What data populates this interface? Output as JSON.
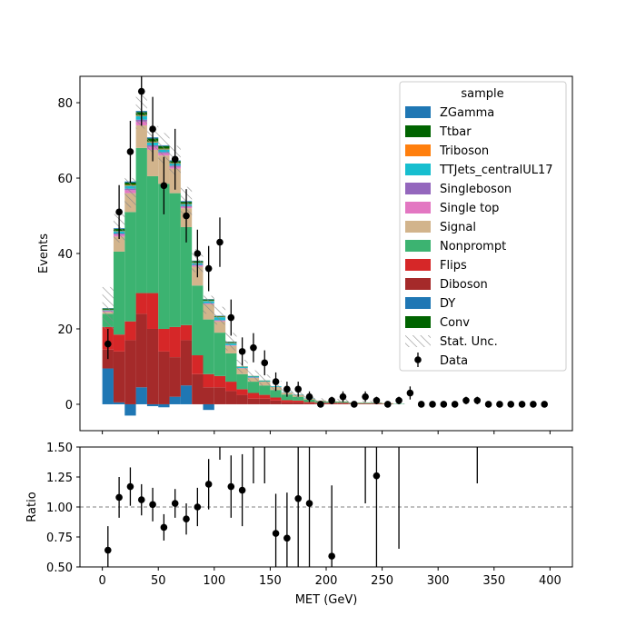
{
  "chart_data": {
    "type": "bar",
    "stacked": true,
    "xlabel": "MET (GeV)",
    "ylabel": "Events",
    "ratio_ylabel": "Ratio",
    "xlim": [
      -20,
      420
    ],
    "ylim": [
      -7,
      87
    ],
    "ratio_ylim": [
      0.5,
      1.5
    ],
    "x_ticks": [
      0,
      50,
      100,
      150,
      200,
      250,
      300,
      350,
      400
    ],
    "y_ticks": [
      0,
      20,
      40,
      60,
      80
    ],
    "ratio_ticks": [
      "0.50",
      "0.75",
      "1.00",
      "1.25",
      "1.50"
    ],
    "ratio_tick_values": [
      0.5,
      0.75,
      1.0,
      1.25,
      1.5
    ],
    "ratio_reference": 1.0,
    "bin_edges": [
      0,
      10,
      20,
      30,
      40,
      50,
      60,
      70,
      80,
      90,
      100,
      110,
      120,
      130,
      140,
      150,
      160,
      170,
      180,
      190,
      200,
      210,
      220,
      230,
      240,
      250,
      260,
      270,
      280,
      290,
      300,
      310,
      320,
      330,
      340,
      350,
      360,
      370,
      380,
      390,
      400
    ],
    "legend": {
      "title": "sample",
      "position": "upper right",
      "entries": [
        "ZGamma",
        "Ttbar",
        "Triboson",
        "TTJets_centralUL17",
        "Singleboson",
        "Single top",
        "Signal",
        "Nonprompt",
        "Flips",
        "Diboson",
        "DY",
        "Conv",
        "Stat. Unc.",
        "Data"
      ]
    },
    "series": [
      {
        "name": "DY",
        "color": "#1f77b4",
        "values": [
          9.5,
          0.5,
          -3,
          4.5,
          -0.5,
          -0.8,
          2,
          5,
          0,
          -1.5,
          0,
          0,
          0,
          0,
          0,
          0,
          0,
          0,
          0,
          0,
          0,
          0,
          0,
          0,
          0,
          0,
          0,
          0,
          0,
          0,
          0,
          0,
          0,
          0,
          0,
          0,
          0,
          0,
          0,
          0
        ]
      },
      {
        "name": "Diboson",
        "color": "#a52a2a",
        "values": [
          5,
          13.5,
          17,
          19.5,
          20,
          14,
          10.5,
          12,
          8,
          4.5,
          4.5,
          3.5,
          2.5,
          1.5,
          1.5,
          1,
          0.5,
          0.5,
          0.3,
          0.2,
          0.2,
          0.2,
          0.1,
          0.1,
          0.1,
          0,
          0,
          0,
          0,
          0,
          0,
          0,
          0,
          0,
          0,
          0,
          0,
          0,
          0,
          0
        ]
      },
      {
        "name": "Flips",
        "color": "#d62728",
        "values": [
          6,
          4.5,
          5,
          5.5,
          9.5,
          6,
          8,
          4,
          5,
          3.5,
          3,
          2.5,
          1.5,
          1.5,
          1,
          0.8,
          0.6,
          0.5,
          0.3,
          0.2,
          0.2,
          0.2,
          0.1,
          0.1,
          0.1,
          0.1,
          0,
          0,
          0,
          0,
          0,
          0,
          0,
          0,
          0,
          0,
          0,
          0,
          0,
          0
        ]
      },
      {
        "name": "Nonprompt",
        "color": "#3cb371",
        "values": [
          3.5,
          22,
          29,
          38.5,
          31,
          38.5,
          35.5,
          26,
          18.5,
          14.5,
          11.5,
          7.5,
          4,
          3,
          2.5,
          2,
          1.5,
          1,
          0.6,
          0.4,
          0.3,
          0.3,
          0.2,
          0.2,
          0.2,
          0.1,
          0.1,
          0,
          0,
          0,
          0,
          0,
          0,
          0,
          0,
          0,
          0,
          0,
          0,
          0
        ]
      },
      {
        "name": "Signal",
        "color": "#d2b48c",
        "values": [
          0.5,
          4,
          5,
          6,
          7,
          7.5,
          6.5,
          5,
          5,
          4,
          3,
          2,
          1.5,
          1,
          1,
          0.8,
          0.5,
          0.5,
          0.3,
          0.2,
          0.1,
          0.1,
          0.1,
          0.1,
          0.1,
          0.1,
          0,
          0,
          0,
          0,
          0,
          0,
          0,
          0,
          0,
          0,
          0,
          0,
          0,
          0
        ]
      },
      {
        "name": "Single top",
        "color": "#e377c2",
        "values": [
          0.2,
          0.5,
          0.8,
          1,
          0.8,
          0.6,
          0.5,
          0.4,
          0.3,
          0.2,
          0.2,
          0.1,
          0.1,
          0.1,
          0,
          0,
          0,
          0,
          0,
          0,
          0,
          0,
          0,
          0,
          0,
          0,
          0,
          0,
          0,
          0,
          0,
          0,
          0,
          0,
          0,
          0,
          0,
          0,
          0,
          0
        ]
      },
      {
        "name": "Singleboson",
        "color": "#9467bd",
        "values": [
          0.1,
          0.3,
          0.4,
          0.5,
          0.4,
          0.3,
          0.3,
          0.2,
          0.2,
          0.1,
          0.1,
          0.1,
          0,
          0,
          0,
          0,
          0,
          0,
          0,
          0,
          0,
          0,
          0,
          0,
          0,
          0,
          0,
          0,
          0,
          0,
          0,
          0,
          0,
          0,
          0,
          0,
          0,
          0,
          0,
          0
        ]
      },
      {
        "name": "TTJets_centralUL17",
        "color": "#17becf",
        "values": [
          0.2,
          0.6,
          0.8,
          1,
          0.8,
          0.7,
          0.6,
          0.5,
          0.5,
          0.6,
          0.8,
          0.5,
          0.3,
          0.3,
          0.2,
          0.2,
          0.1,
          0.1,
          0.1,
          0,
          0,
          0,
          0,
          0,
          0,
          0,
          0,
          0,
          0,
          0,
          0,
          0,
          0,
          0,
          0,
          0,
          0,
          0,
          0,
          0
        ]
      },
      {
        "name": "Triboson",
        "color": "#ff7f0e",
        "values": [
          0.1,
          0.1,
          0.2,
          0.2,
          0.2,
          0.2,
          0.1,
          0.1,
          0.1,
          0.1,
          0.1,
          0.1,
          0,
          0,
          0,
          0,
          0,
          0,
          0,
          0,
          0,
          0,
          0,
          0,
          0,
          0,
          0,
          0,
          0,
          0,
          0,
          0,
          0,
          0,
          0,
          0,
          0,
          0,
          0,
          0
        ]
      },
      {
        "name": "Ttbar",
        "color": "#006400",
        "values": [
          0.3,
          0.5,
          0.6,
          0.8,
          0.8,
          0.7,
          0.5,
          0.5,
          0.4,
          0.3,
          0.2,
          0.2,
          0.1,
          0.1,
          0.1,
          0,
          0,
          0,
          0,
          0,
          0,
          0,
          0,
          0,
          0,
          0,
          0,
          0,
          0,
          0,
          0,
          0,
          0,
          0,
          0,
          0,
          0,
          0,
          0,
          0
        ]
      },
      {
        "name": "ZGamma",
        "color": "#1f77b4",
        "values": [
          0.1,
          0.2,
          0.3,
          0.3,
          0.3,
          0.2,
          0.2,
          0.2,
          0.1,
          0.1,
          0.1,
          0.1,
          0,
          0,
          0,
          0,
          0,
          0,
          0,
          0,
          0,
          0,
          0,
          0,
          0,
          0,
          0,
          0,
          0,
          0,
          0,
          0,
          0,
          0,
          0,
          0,
          0,
          0,
          0,
          0
        ]
      },
      {
        "name": "Conv",
        "color": "#006400",
        "values": [
          0,
          0,
          0,
          0,
          0,
          0,
          0,
          0,
          0,
          0,
          0,
          0,
          0,
          0,
          0,
          0,
          0,
          0,
          0,
          0,
          0,
          0,
          0,
          0,
          0,
          0,
          0,
          0,
          0,
          0,
          0,
          0,
          0,
          0,
          0,
          0,
          0,
          0,
          0,
          0
        ]
      }
    ],
    "stat_unc_rel": [
      0.22,
      0.08,
      0.07,
      0.06,
      0.05,
      0.06,
      0.06,
      0.07,
      0.08,
      0.09,
      0.1,
      0.14,
      0.18,
      0.2,
      0.25,
      0.3,
      0.35,
      0.4,
      0.5,
      0.6,
      0.7,
      0.8,
      0.8,
      0.8,
      0.8,
      0.8,
      0.8,
      0.8,
      0.8,
      0.8,
      0.8,
      0.8,
      0.8,
      0.8,
      0.8,
      0.8,
      0.8,
      0.8,
      0.8,
      0.8
    ],
    "data": {
      "name": "Data",
      "x": [
        5,
        15,
        25,
        35,
        45,
        55,
        65,
        75,
        85,
        95,
        105,
        115,
        125,
        135,
        145,
        155,
        165,
        175,
        185,
        195,
        205,
        215,
        225,
        235,
        245,
        255,
        265,
        275,
        285,
        295,
        305,
        315,
        325,
        335,
        345,
        355,
        365,
        375,
        385,
        395
      ],
      "y": [
        16,
        51,
        67,
        83,
        73,
        58,
        65,
        50,
        40,
        36,
        43,
        23,
        14,
        15,
        11,
        6,
        4,
        4,
        2,
        0,
        1,
        2,
        0,
        2,
        1,
        0,
        1,
        3,
        0,
        0,
        0,
        0,
        1,
        1,
        0,
        0,
        0,
        0,
        0,
        0
      ]
    },
    "ratio": {
      "x": [
        5,
        15,
        25,
        35,
        45,
        55,
        65,
        75,
        85,
        95,
        115,
        125,
        155,
        165,
        175,
        185,
        205,
        245
      ],
      "y": [
        0.64,
        1.08,
        1.17,
        1.06,
        1.02,
        0.83,
        1.03,
        0.9,
        1.0,
        1.19,
        1.17,
        1.14,
        0.78,
        0.74,
        1.07,
        1.03,
        0.59,
        1.26
      ],
      "err": [
        0.2,
        0.17,
        0.16,
        0.13,
        0.14,
        0.11,
        0.12,
        0.13,
        0.16,
        0.21,
        0.26,
        0.3,
        0.33,
        0.38,
        0.6,
        0.7,
        0.59,
        1.26
      ],
      "offscale_bins": [
        105,
        135,
        145,
        235,
        265,
        335
      ]
    }
  }
}
